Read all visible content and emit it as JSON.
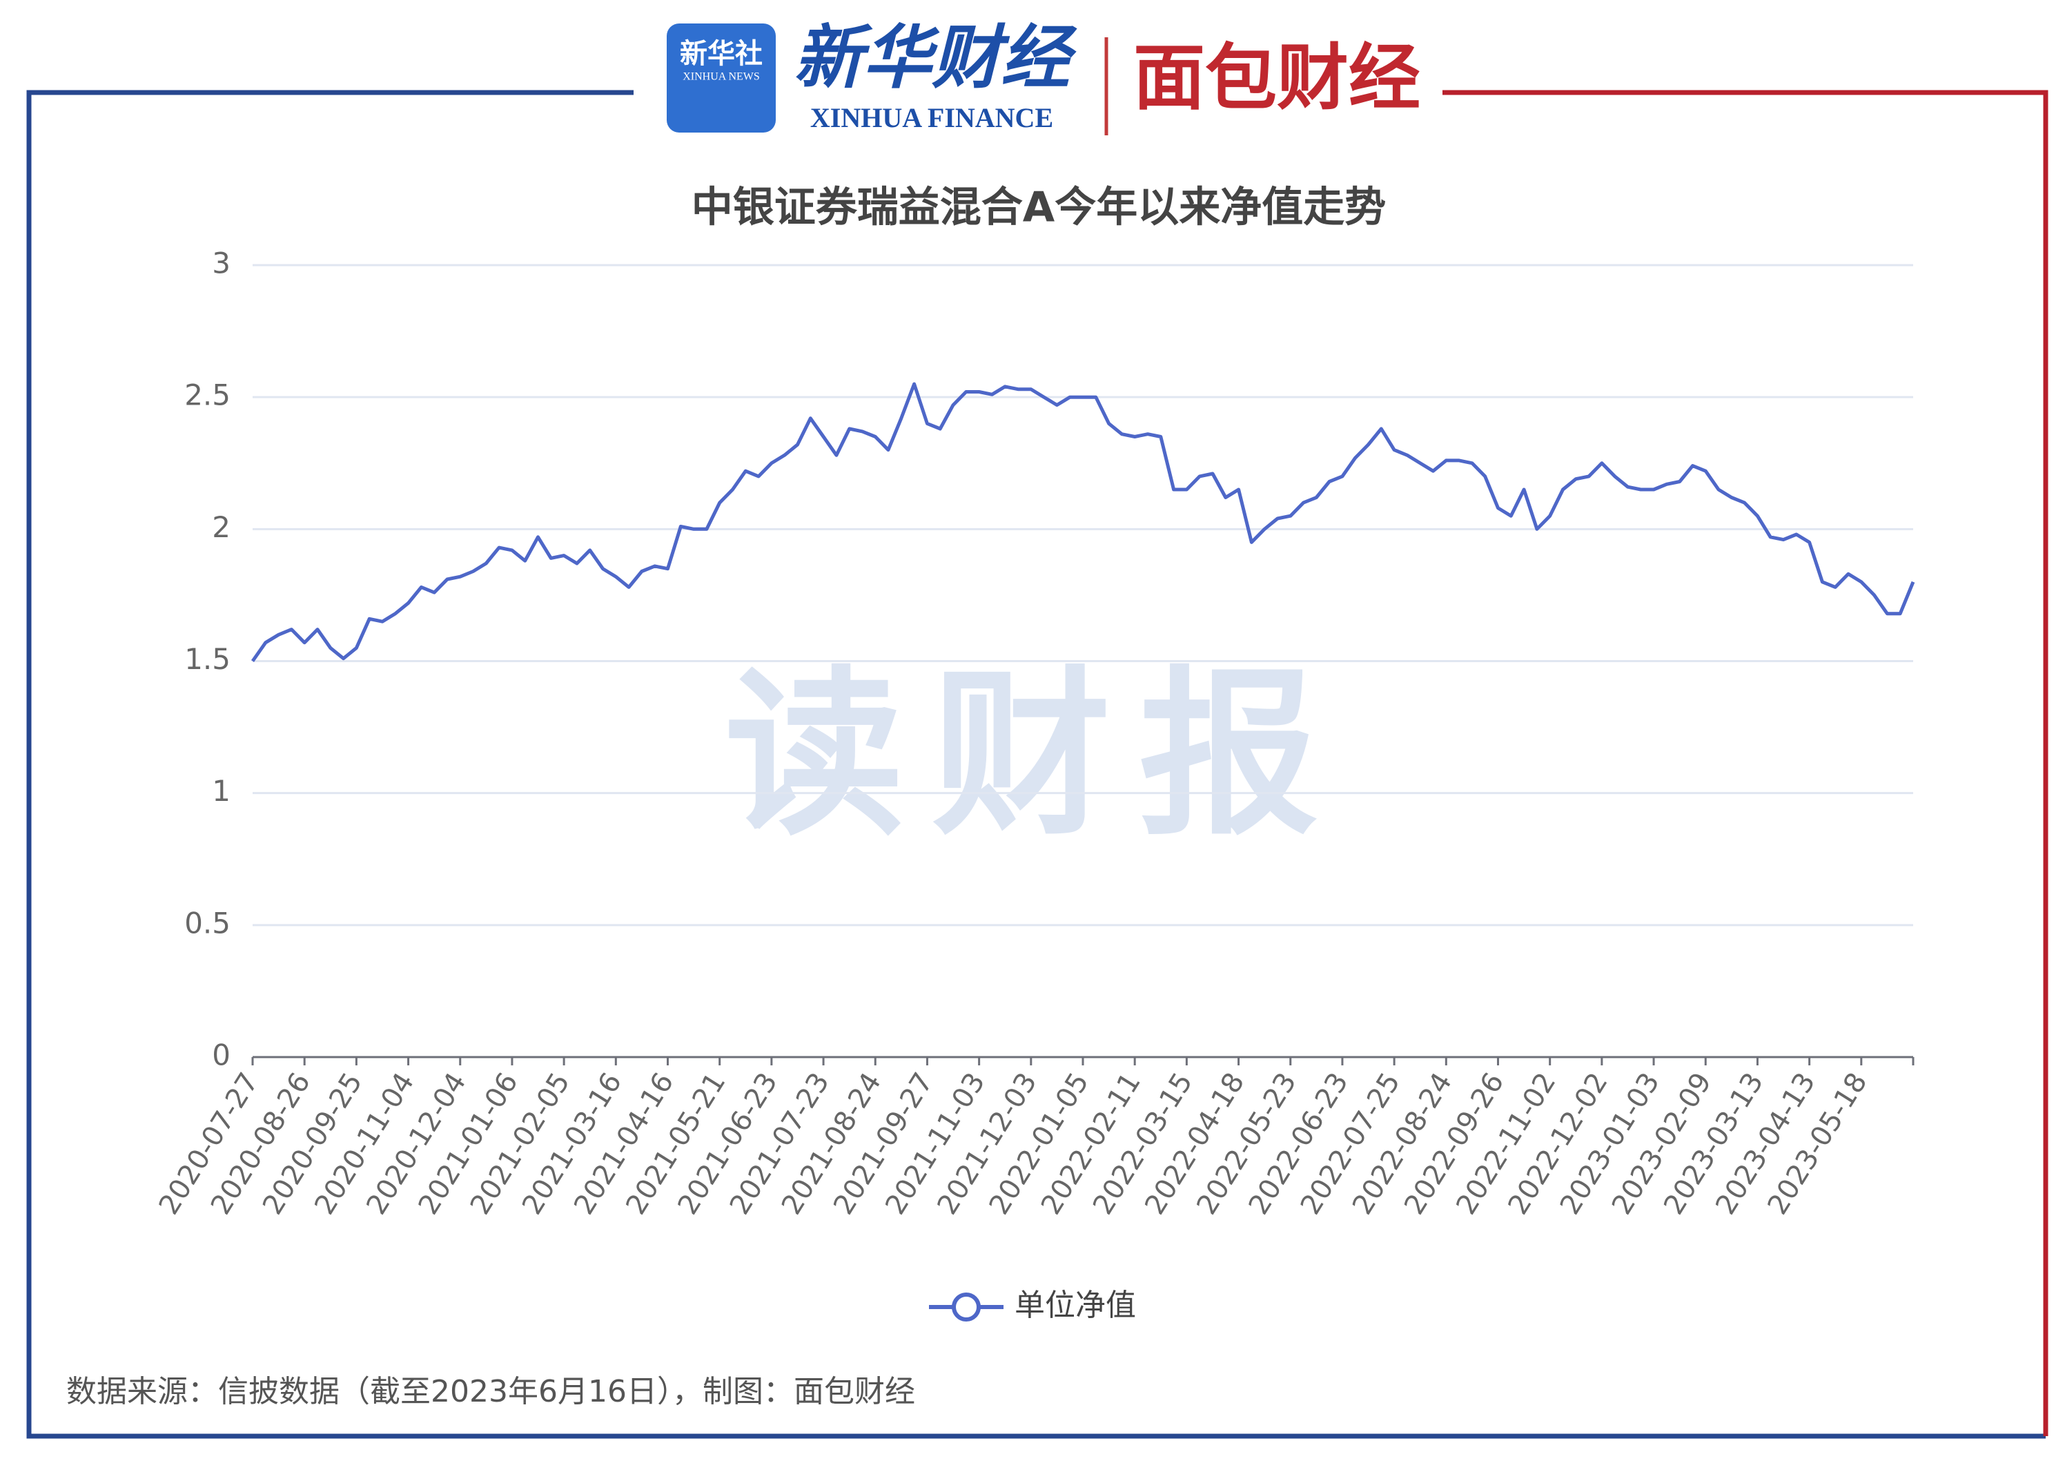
{
  "header": {
    "logo_1": "新华社",
    "logo_1_sub": "XINHUA NEWS",
    "logo_2": "新华财经",
    "logo_2_sub": "XINHUA FINANCE",
    "logo_3": "面包财经"
  },
  "watermark": "读财报",
  "source": "数据来源：信披数据（截至2023年6月16日），制图：面包财经",
  "chart_data": {
    "type": "line",
    "title": "中银证券瑞益混合A今年以来净值走势",
    "categories": [
      "2020-07-27",
      null,
      null,
      null,
      "2020-08-26",
      null,
      null,
      null,
      "2020-09-25",
      null,
      null,
      null,
      "2020-11-04",
      null,
      null,
      null,
      "2020-12-04",
      null,
      null,
      null,
      "2021-01-06",
      null,
      null,
      null,
      "2021-02-05",
      null,
      null,
      null,
      "2021-03-16",
      null,
      null,
      null,
      "2021-04-16",
      null,
      null,
      null,
      "2021-05-21",
      null,
      null,
      null,
      "2021-06-23",
      null,
      null,
      null,
      "2021-07-23",
      null,
      null,
      null,
      "2021-08-24",
      null,
      null,
      null,
      "2021-09-27",
      null,
      null,
      null,
      "2021-11-03",
      null,
      null,
      null,
      "2021-12-03",
      null,
      null,
      null,
      "2022-01-05",
      null,
      null,
      null,
      "2022-02-11",
      null,
      null,
      null,
      "2022-03-15",
      null,
      null,
      null,
      "2022-04-18",
      null,
      null,
      null,
      "2022-05-23",
      null,
      null,
      null,
      "2022-06-23",
      null,
      null,
      null,
      "2022-07-25",
      null,
      null,
      null,
      "2022-08-24",
      null,
      null,
      null,
      "2022-09-26",
      null,
      null,
      null,
      "2022-11-02",
      null,
      null,
      null,
      "2022-12-02",
      null,
      null,
      null,
      "2023-01-03",
      null,
      null,
      null,
      "2023-02-09",
      null,
      null,
      null,
      "2023-03-13",
      null,
      null,
      null,
      "2023-04-13",
      null,
      null,
      null,
      "2023-05-18",
      null,
      null,
      null,
      null
    ],
    "series": [
      {
        "name": "单位净值",
        "color": "#4e67c8",
        "values": [
          1.5,
          1.57,
          1.6,
          1.62,
          1.57,
          1.62,
          1.55,
          1.51,
          1.55,
          1.66,
          1.65,
          1.68,
          1.72,
          1.78,
          1.76,
          1.81,
          1.82,
          1.84,
          1.87,
          1.93,
          1.92,
          1.88,
          1.97,
          1.89,
          1.9,
          1.87,
          1.92,
          1.85,
          1.82,
          1.78,
          1.84,
          1.86,
          1.85,
          2.01,
          2.0,
          2.0,
          2.1,
          2.15,
          2.22,
          2.2,
          2.25,
          2.28,
          2.32,
          2.42,
          2.35,
          2.28,
          2.38,
          2.37,
          2.35,
          2.3,
          2.42,
          2.55,
          2.4,
          2.38,
          2.47,
          2.52,
          2.52,
          2.51,
          2.54,
          2.53,
          2.53,
          2.5,
          2.47,
          2.5,
          2.5,
          2.5,
          2.4,
          2.36,
          2.35,
          2.36,
          2.35,
          2.15,
          2.15,
          2.2,
          2.21,
          2.12,
          2.15,
          1.95,
          2.0,
          2.04,
          2.05,
          2.1,
          2.12,
          2.18,
          2.2,
          2.27,
          2.32,
          2.38,
          2.3,
          2.28,
          2.25,
          2.22,
          2.26,
          2.26,
          2.25,
          2.2,
          2.08,
          2.05,
          2.15,
          2.0,
          2.05,
          2.15,
          2.19,
          2.2,
          2.25,
          2.2,
          2.16,
          2.15,
          2.15,
          2.17,
          2.18,
          2.24,
          2.22,
          2.15,
          2.12,
          2.1,
          2.05,
          1.97,
          1.96,
          1.98,
          1.95,
          1.8,
          1.78,
          1.83,
          1.8,
          1.75,
          1.68,
          1.68,
          1.8
        ]
      }
    ],
    "ylim": [
      0,
      3
    ],
    "yticks": [
      0,
      0.5,
      1,
      1.5,
      2,
      2.5,
      3
    ],
    "grid": true
  }
}
